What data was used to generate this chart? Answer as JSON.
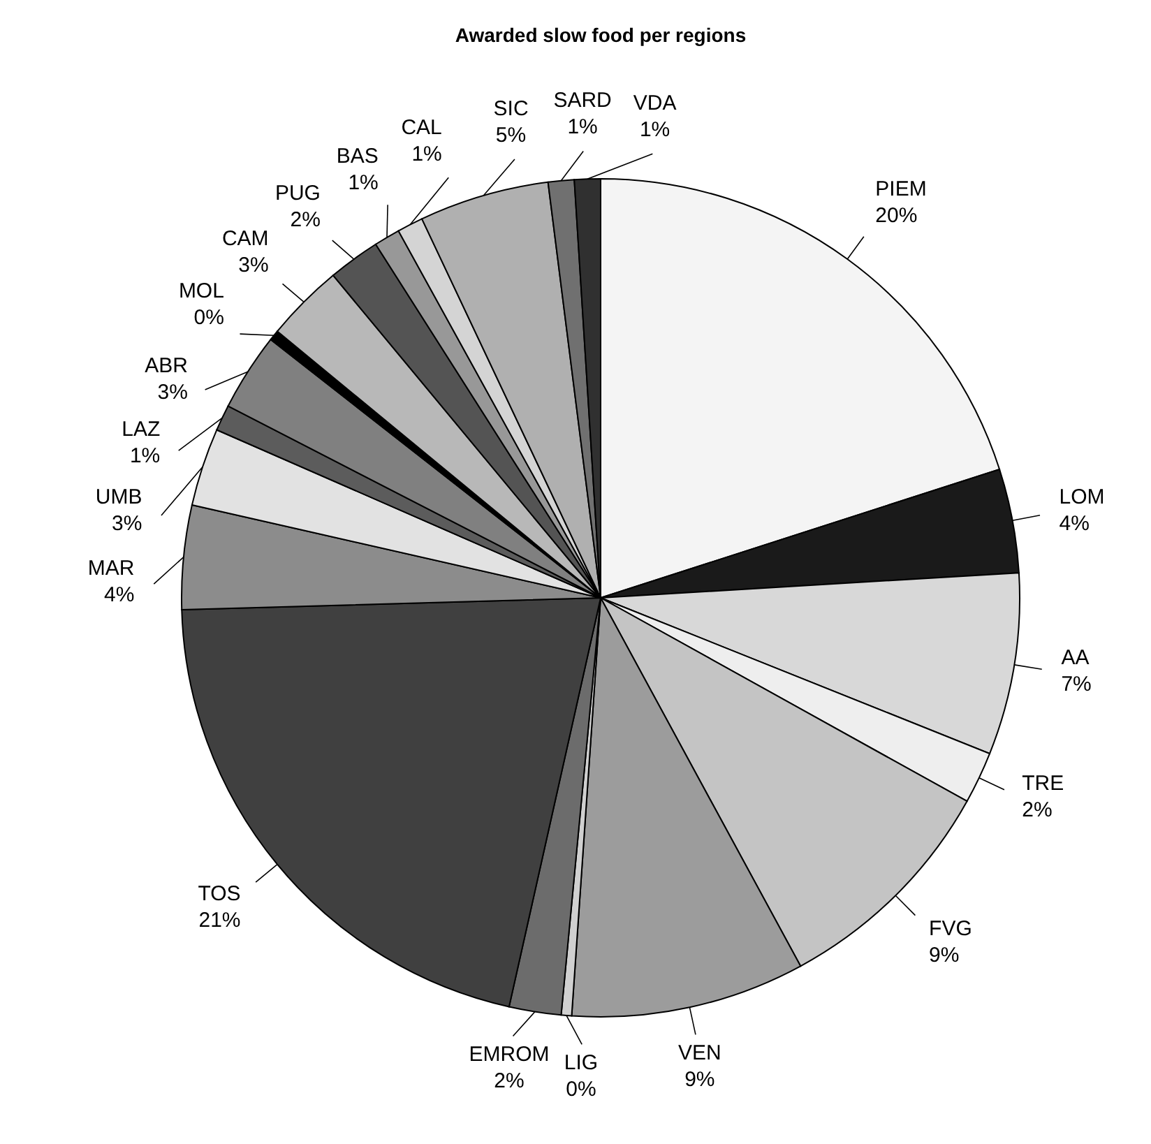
{
  "chart_data": {
    "type": "pie",
    "title": "Awarded slow food per regions",
    "categories": [
      "PIEM",
      "LOM",
      "AA",
      "TRE",
      "FVG",
      "VEN",
      "LIG",
      "EMROM",
      "TOS",
      "MAR",
      "UMB",
      "LAZ",
      "ABR",
      "MOL",
      "CAM",
      "PUG",
      "BAS",
      "CAL",
      "SIC",
      "SARD",
      "VDA"
    ],
    "values": [
      20,
      4,
      7,
      2,
      9,
      9,
      0.4,
      2,
      21,
      4,
      3,
      1,
      3,
      0.4,
      3,
      2,
      1,
      1,
      5,
      1,
      1
    ],
    "value_labels": [
      "20%",
      "4%",
      "7%",
      "2%",
      "9%",
      "9%",
      "0%",
      "2%",
      "21%",
      "4%",
      "3%",
      "1%",
      "3%",
      "0%",
      "3%",
      "2%",
      "1%",
      "1%",
      "5%",
      "1%",
      "1%"
    ],
    "colors": [
      "#f4f4f4",
      "#1a1a1a",
      "#d8d8d8",
      "#eeeeee",
      "#c4c4c4",
      "#9c9c9c",
      "#d0d0d0",
      "#6c6c6c",
      "#404040",
      "#8c8c8c",
      "#e2e2e2",
      "#5c5c5c",
      "#808080",
      "#000000",
      "#b8b8b8",
      "#545454",
      "#989898",
      "#d4d4d4",
      "#b0b0b0",
      "#707070",
      "#303030"
    ]
  }
}
